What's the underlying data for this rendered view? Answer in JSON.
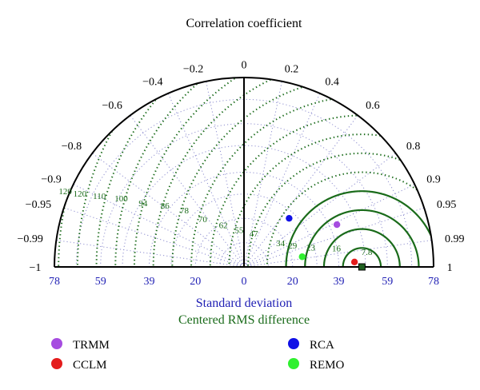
{
  "chart_data": {
    "type": "taylor",
    "title": "Correlation coefficient",
    "xlabel": "Standard deviation",
    "rms_label": "Centered RMS difference",
    "sd_range": [
      0,
      78
    ],
    "sd_ticks": [
      "78",
      "59",
      "39",
      "20",
      "0",
      "20",
      "39",
      "59",
      "78"
    ],
    "sd_tick_values": [
      -78,
      -59,
      -39,
      -20,
      0,
      20,
      39,
      59,
      78
    ],
    "corr_ticks": [
      {
        "value": 0,
        "label": "0"
      },
      {
        "value": 0.2,
        "label": "0.2"
      },
      {
        "value": 0.4,
        "label": "0.4"
      },
      {
        "value": 0.6,
        "label": "0.6"
      },
      {
        "value": 0.8,
        "label": "0.8"
      },
      {
        "value": 0.9,
        "label": "0.9"
      },
      {
        "value": 0.95,
        "label": "0.95"
      },
      {
        "value": 0.99,
        "label": "0.99"
      },
      {
        "value": 1,
        "label": "1"
      },
      {
        "value": -0.2,
        "label": "−0.2"
      },
      {
        "value": -0.4,
        "label": "−0.4"
      },
      {
        "value": -0.6,
        "label": "−0.6"
      },
      {
        "value": -0.8,
        "label": "−0.8"
      },
      {
        "value": -0.9,
        "label": "−0.9"
      },
      {
        "value": -0.95,
        "label": "−0.95"
      },
      {
        "value": -0.99,
        "label": "−0.99"
      },
      {
        "value": -1,
        "label": "−1"
      }
    ],
    "reference": {
      "sd": 48.5
    },
    "rms_labels": [
      "7.8",
      "16",
      "23",
      "29",
      "34",
      "47",
      "55",
      "62",
      "70",
      "78",
      "86",
      "94",
      "100",
      "110",
      "120",
      "120"
    ],
    "rms_label_values": [
      7.8,
      16,
      23,
      29,
      34,
      47,
      55,
      62,
      70,
      78,
      86,
      94,
      100,
      110,
      120,
      120
    ],
    "rms_label_positions": [
      [
        50.5,
        5.0
      ],
      [
        38.0,
        6.5
      ],
      [
        27.5,
        6.8
      ],
      [
        20.0,
        7.5
      ],
      [
        15.0,
        8.6
      ],
      [
        4.0,
        12.5
      ],
      [
        -2.0,
        14.0
      ],
      [
        -8.5,
        16.0
      ],
      [
        -17.0,
        18.5
      ],
      [
        -24.5,
        22.0
      ],
      [
        -32.5,
        24.0
      ],
      [
        -41.5,
        25.0
      ],
      [
        -50.5,
        27.0
      ],
      [
        -59.5,
        28.0
      ],
      [
        -67.5,
        29.0
      ],
      [
        -73.5,
        30.0
      ]
    ],
    "models": [
      {
        "name": "TRMM",
        "color": "#a64ce0",
        "sd": 42.0,
        "corr": 0.91
      },
      {
        "name": "RCA",
        "color": "#1010e6",
        "sd": 27.3,
        "corr": 0.68
      },
      {
        "name": "REMO",
        "color": "#2ff02f",
        "sd": 24.3,
        "corr": 0.985
      },
      {
        "name": "CCLM",
        "color": "#e41c1c",
        "sd": 45.5,
        "corr": 0.999
      }
    ],
    "legend": [
      {
        "label": "TRMM",
        "color": "#a64ce0"
      },
      {
        "label": "CCLM",
        "color": "#e41c1c"
      },
      {
        "label": "RCA",
        "color": "#1010e6"
      },
      {
        "label": "REMO",
        "color": "#2ff02f"
      }
    ],
    "colors": {
      "rms": "#1a6b1a",
      "corr_grid": "#8f8fd0",
      "sd_axis": "#1f1fb4"
    }
  }
}
